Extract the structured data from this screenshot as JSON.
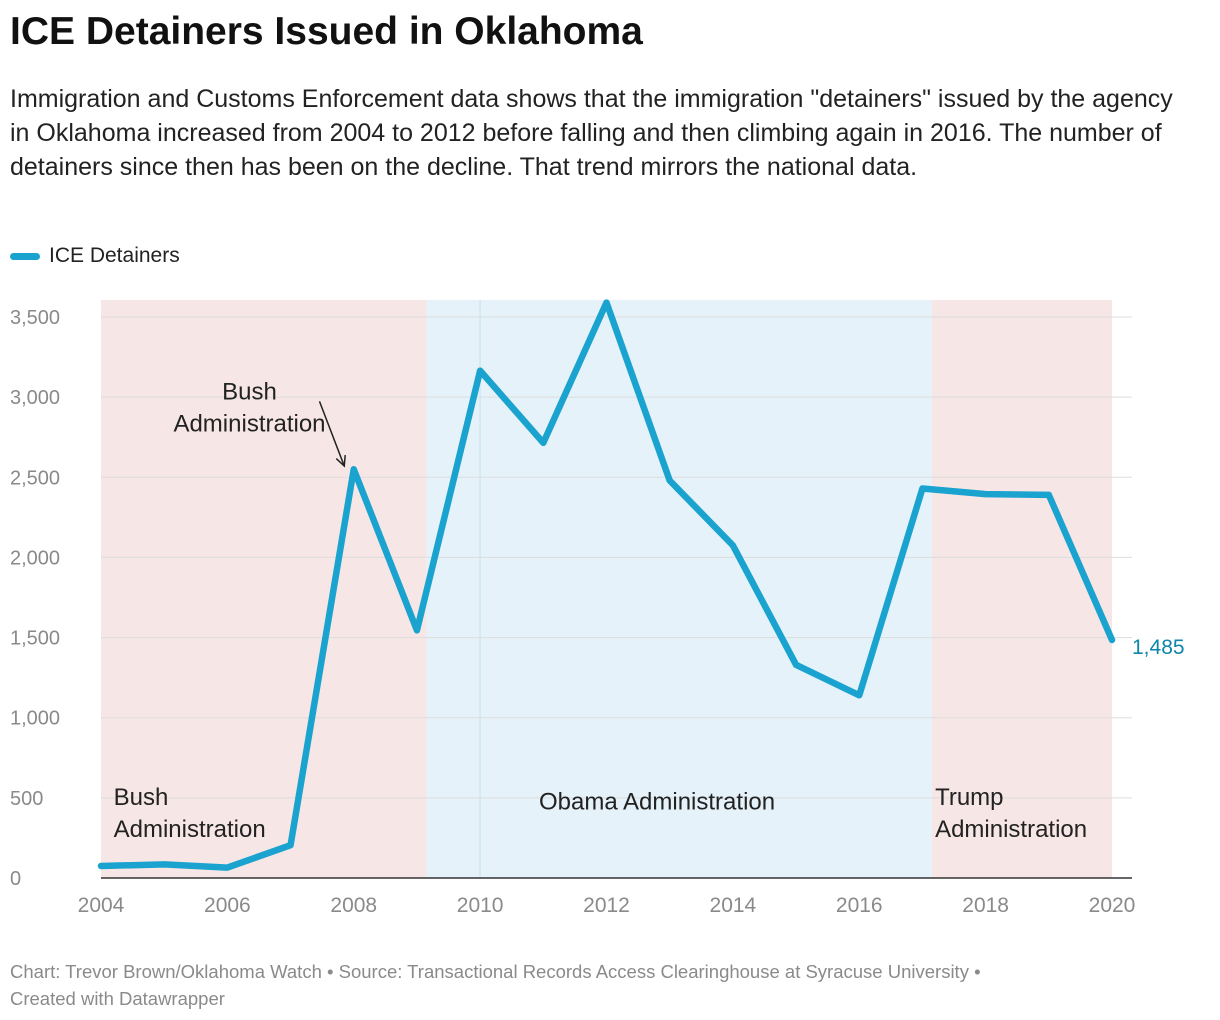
{
  "header": {
    "title": "ICE Detainers Issued in Oklahoma",
    "subtitle": "Immigration and Customs Enforcement data shows that the immigration \"detainers\" issued by the agency in Oklahoma increased from 2004 to 2012 before falling and then climbing again in 2016. The number of detainers since then has been on the decline. That trend mirrors the national data."
  },
  "legend": {
    "label": "ICE Detainers",
    "color": "#1aa3cf"
  },
  "chart_data": {
    "type": "line",
    "title": "ICE Detainers Issued in Oklahoma",
    "xlabel": "",
    "ylabel": "",
    "x": [
      2004,
      2005,
      2006,
      2007,
      2008,
      2009,
      2010,
      2011,
      2012,
      2013,
      2014,
      2015,
      2016,
      2017,
      2018,
      2019,
      2020
    ],
    "series": [
      {
        "name": "ICE Detainers",
        "color": "#1aa3cf",
        "values": [
          75,
          85,
          65,
          205,
          2550,
          1545,
          3165,
          2715,
          3590,
          2480,
          2075,
          1330,
          1140,
          2430,
          2395,
          2390,
          1485
        ]
      }
    ],
    "xlim": [
      2004,
      2020
    ],
    "ylim": [
      0,
      3600
    ],
    "x_ticks": [
      2004,
      2006,
      2008,
      2010,
      2012,
      2014,
      2016,
      2018,
      2020
    ],
    "x_tick_labels": [
      "2004",
      "2006",
      "2008",
      "2010",
      "2012",
      "2014",
      "2016",
      "2018",
      "2020"
    ],
    "y_ticks": [
      0,
      500,
      1000,
      1500,
      2000,
      2500,
      3000,
      3500
    ],
    "y_tick_labels": [
      "0",
      "500",
      "1,000",
      "1,500",
      "2,000",
      "2,500",
      "3,000",
      "3,500"
    ],
    "grid": true,
    "legend_position": "top-left",
    "end_label": {
      "x": 2020,
      "value": 1485,
      "text": "1,485",
      "color": "#0e86aa"
    },
    "ranges": [
      {
        "name": "Bush",
        "from": 2004,
        "to": 2009.15,
        "color": "#f7e6e6"
      },
      {
        "name": "Obama",
        "from": 2009.15,
        "to": 2017.15,
        "color": "#e5f2f9"
      },
      {
        "name": "Trump",
        "from": 2017.15,
        "to": 2020,
        "color": "#f7e6e6"
      }
    ],
    "annotations": [
      {
        "lines": [
          "Bush",
          "Administration"
        ],
        "x": 2004.2,
        "y": 500,
        "anchor": "start"
      },
      {
        "lines": [
          "Obama Administration"
        ],
        "x": 2012.8,
        "y": 470,
        "anchor": "middle"
      },
      {
        "lines": [
          "Trump",
          "Administration"
        ],
        "x": 2017.2,
        "y": 500,
        "anchor": "start"
      },
      {
        "lines": [
          "Bush",
          "Administration"
        ],
        "x": 2006.35,
        "y": 3030,
        "anchor": "middle",
        "arrow_to": {
          "x": 2007.85,
          "y": 2570
        }
      }
    ],
    "ref_line_x": 2010
  },
  "footer": {
    "line1": "Chart: Trevor Brown/Oklahoma Watch • Source: Transactional Records Access Clearinghouse at Syracuse University •",
    "line2": "Created with Datawrapper"
  }
}
